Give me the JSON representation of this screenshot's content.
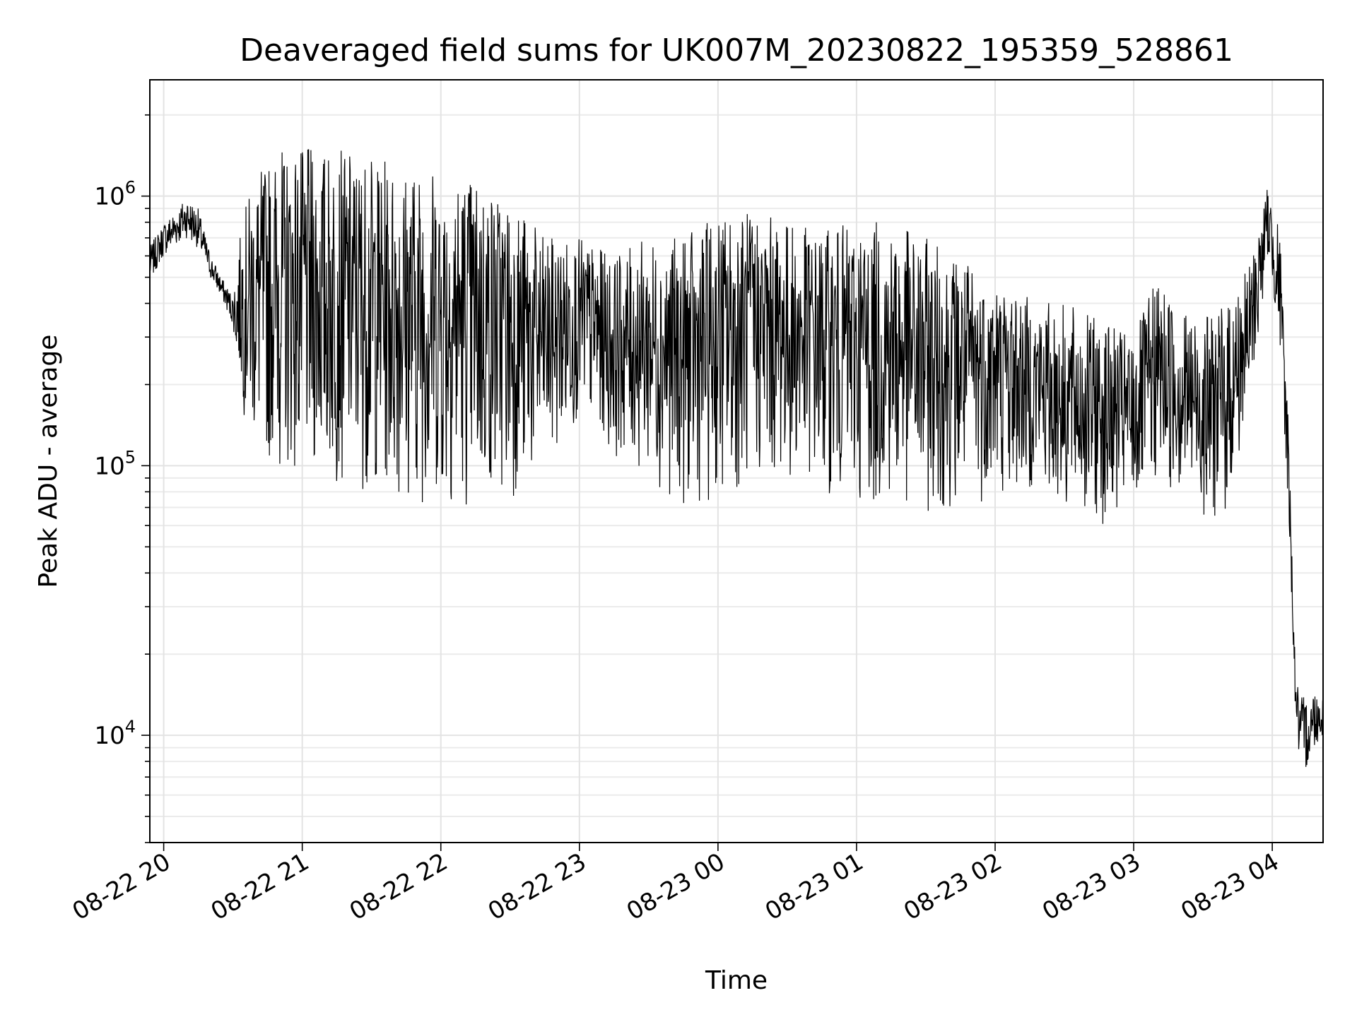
{
  "chart_data": {
    "type": "line",
    "title": "Deaveraged field sums for UK007M_20230822_195359_528861",
    "xlabel": "Time",
    "ylabel": "Peak ADU - average",
    "xlim": [
      "2023-08-22 19:54",
      "2023-08-23 04:22"
    ],
    "ylim": [
      4000,
      2700000
    ],
    "yscale": "log",
    "grid": true,
    "line_color": "#000000",
    "x_ticks": [
      "08-22 20",
      "08-22 21",
      "08-22 22",
      "08-22 23",
      "08-23 00",
      "08-23 01",
      "08-23 02",
      "08-23 03",
      "08-23 04"
    ],
    "y_ticks": [
      {
        "value": 10000,
        "base": "10",
        "exp": "4"
      },
      {
        "value": 100000,
        "base": "10",
        "exp": "5"
      },
      {
        "value": 1000000,
        "base": "10",
        "exp": "6"
      }
    ],
    "series": [
      {
        "x": [
          "2023-08-22 19:54",
          "2023-08-22 20:00",
          "2023-08-22 20:10",
          "2023-08-22 20:15",
          "2023-08-22 20:20",
          "2023-08-22 20:25",
          "2023-08-22 20:30",
          "2023-08-22 20:33",
          "2023-08-22 20:35",
          "2023-08-22 20:40",
          "2023-08-22 20:50",
          "2023-08-22 21:00",
          "2023-08-22 21:15",
          "2023-08-22 21:30",
          "2023-08-22 21:45",
          "2023-08-22 22:00",
          "2023-08-22 22:15",
          "2023-08-22 22:30",
          "2023-08-22 22:45",
          "2023-08-22 23:00",
          "2023-08-22 23:15",
          "2023-08-22 23:30",
          "2023-08-22 23:45",
          "2023-08-23 00:00",
          "2023-08-23 00:15",
          "2023-08-23 00:30",
          "2023-08-23 00:45",
          "2023-08-23 01:00",
          "2023-08-23 01:15",
          "2023-08-23 01:30",
          "2023-08-23 01:45",
          "2023-08-23 02:00",
          "2023-08-23 02:15",
          "2023-08-23 02:30",
          "2023-08-23 02:45",
          "2023-08-23 03:00",
          "2023-08-23 03:10",
          "2023-08-23 03:20",
          "2023-08-23 03:30",
          "2023-08-23 03:40",
          "2023-08-23 03:50",
          "2023-08-23 03:58",
          "2023-08-23 04:03",
          "2023-08-23 04:07",
          "2023-08-23 04:10",
          "2023-08-23 04:12",
          "2023-08-23 04:15",
          "2023-08-23 04:18",
          "2023-08-23 04:22"
        ],
        "lo": [
          480000,
          600000,
          700000,
          640000,
          500000,
          420000,
          330000,
          200000,
          150000,
          110000,
          95000,
          90000,
          85000,
          80000,
          75000,
          70000,
          70000,
          75000,
          90000,
          150000,
          110000,
          90000,
          70000,
          75000,
          85000,
          90000,
          80000,
          70000,
          70000,
          65000,
          70000,
          75000,
          80000,
          65000,
          60000,
          65000,
          85000,
          75000,
          65000,
          60000,
          150000,
          600000,
          300000,
          70000,
          12000,
          7000,
          7500,
          9000,
          10000
        ],
        "hi": [
          650000,
          800000,
          1000000,
          900000,
          620000,
          500000,
          430000,
          700000,
          900000,
          1200000,
          1500000,
          1500000,
          1500000,
          1400000,
          1300000,
          1300000,
          1200000,
          1000000,
          700000,
          700000,
          600000,
          700000,
          700000,
          850000,
          900000,
          800000,
          750000,
          800000,
          800000,
          700000,
          600000,
          500000,
          420000,
          400000,
          350000,
          300000,
          500000,
          400000,
          350000,
          400000,
          550000,
          1100000,
          800000,
          150000,
          18000,
          14000,
          14000,
          15000,
          14000
        ]
      }
    ]
  }
}
